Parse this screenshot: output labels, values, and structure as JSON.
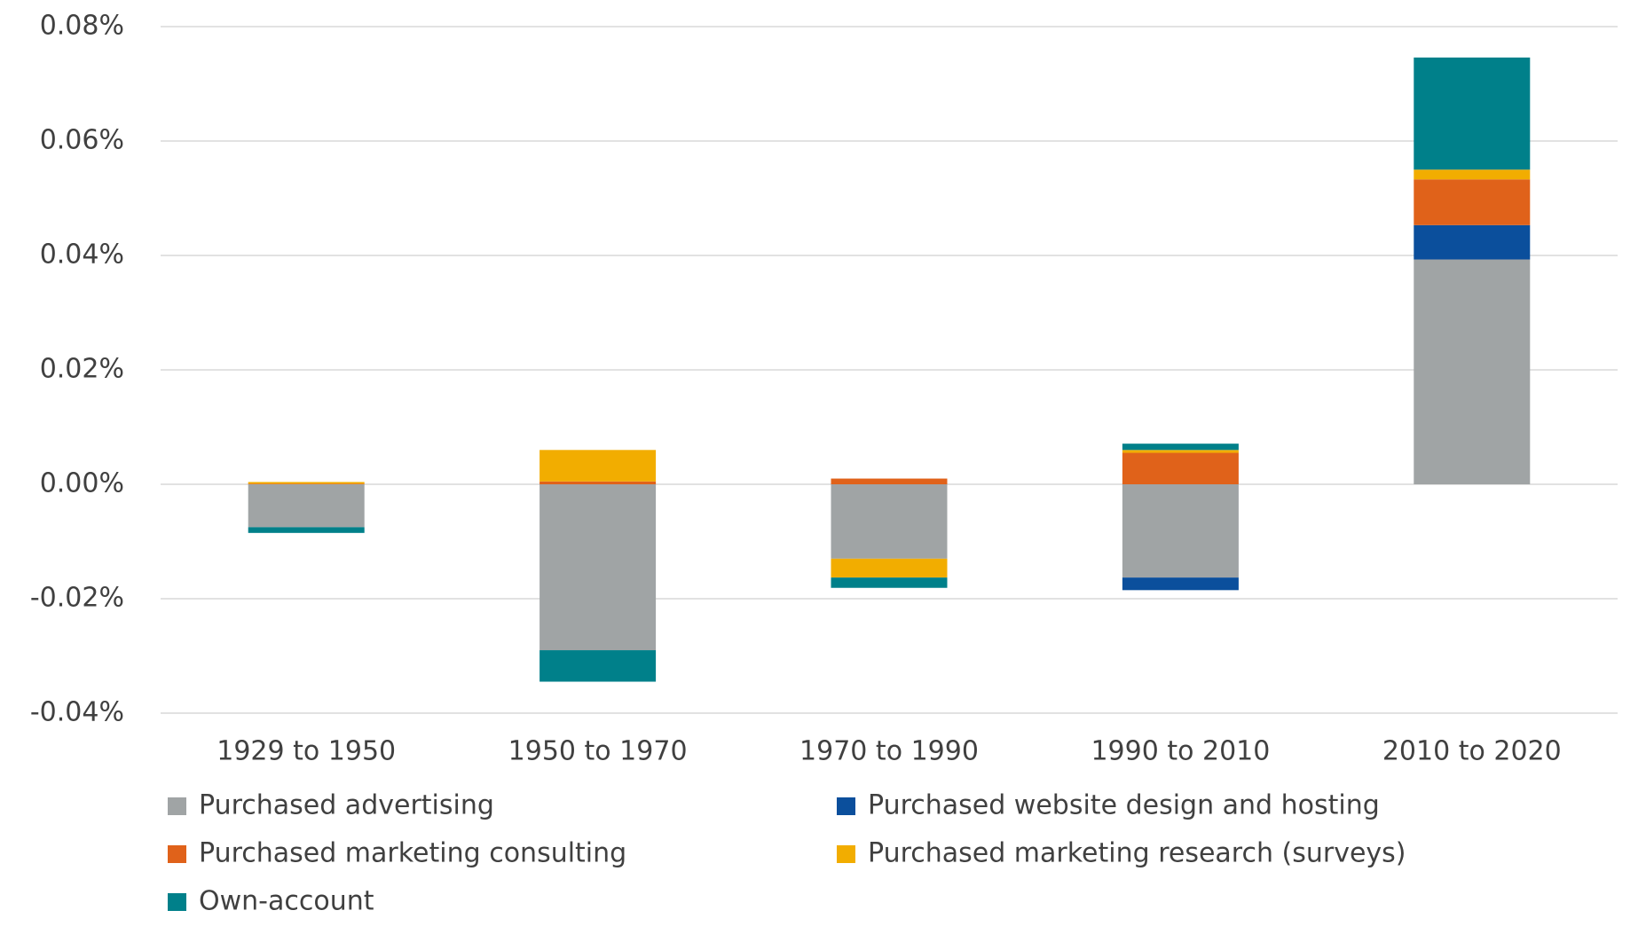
{
  "chart_data": {
    "type": "stacked_bar",
    "categories": [
      "1929 to 1950",
      "1950 to 1970",
      "1970 to 1990",
      "1990 to 2010",
      "2010 to 2020"
    ],
    "series": [
      {
        "name": "Purchased advertising",
        "color": "#a0a4a5",
        "values": [
          -0.0075,
          -0.029,
          -0.013,
          -0.0163,
          0.0393
        ]
      },
      {
        "name": "Purchased website design and hosting",
        "color": "#0b4f9c",
        "values": [
          0,
          0,
          0,
          -0.0022,
          0.006
        ]
      },
      {
        "name": "Purchased marketing consulting",
        "color": "#e0621a",
        "values": [
          0.0001,
          0.0005,
          0.001,
          0.0055,
          0.008
        ]
      },
      {
        "name": "Purchased marketing research (surveys)",
        "color": "#f2ad00",
        "values": [
          0.0003,
          0.0055,
          -0.0033,
          0.0005,
          0.0017
        ]
      },
      {
        "name": "Own-account",
        "color": "#00808a",
        "values": [
          -0.001,
          -0.0055,
          -0.0018,
          0.0011,
          0.0196
        ]
      }
    ],
    "ylim": [
      -0.04,
      0.08
    ],
    "yticks": [
      {
        "value": -0.04,
        "label": "-0.04%"
      },
      {
        "value": -0.02,
        "label": "-0.02%"
      },
      {
        "value": 0,
        "label": "0.00%"
      },
      {
        "value": 0.02,
        "label": "0.02%"
      },
      {
        "value": 0.04,
        "label": "0.04%"
      },
      {
        "value": 0.06,
        "label": "0.06%"
      },
      {
        "value": 0.08,
        "label": "0.08%"
      }
    ],
    "grid": true,
    "legend": "bottom"
  }
}
